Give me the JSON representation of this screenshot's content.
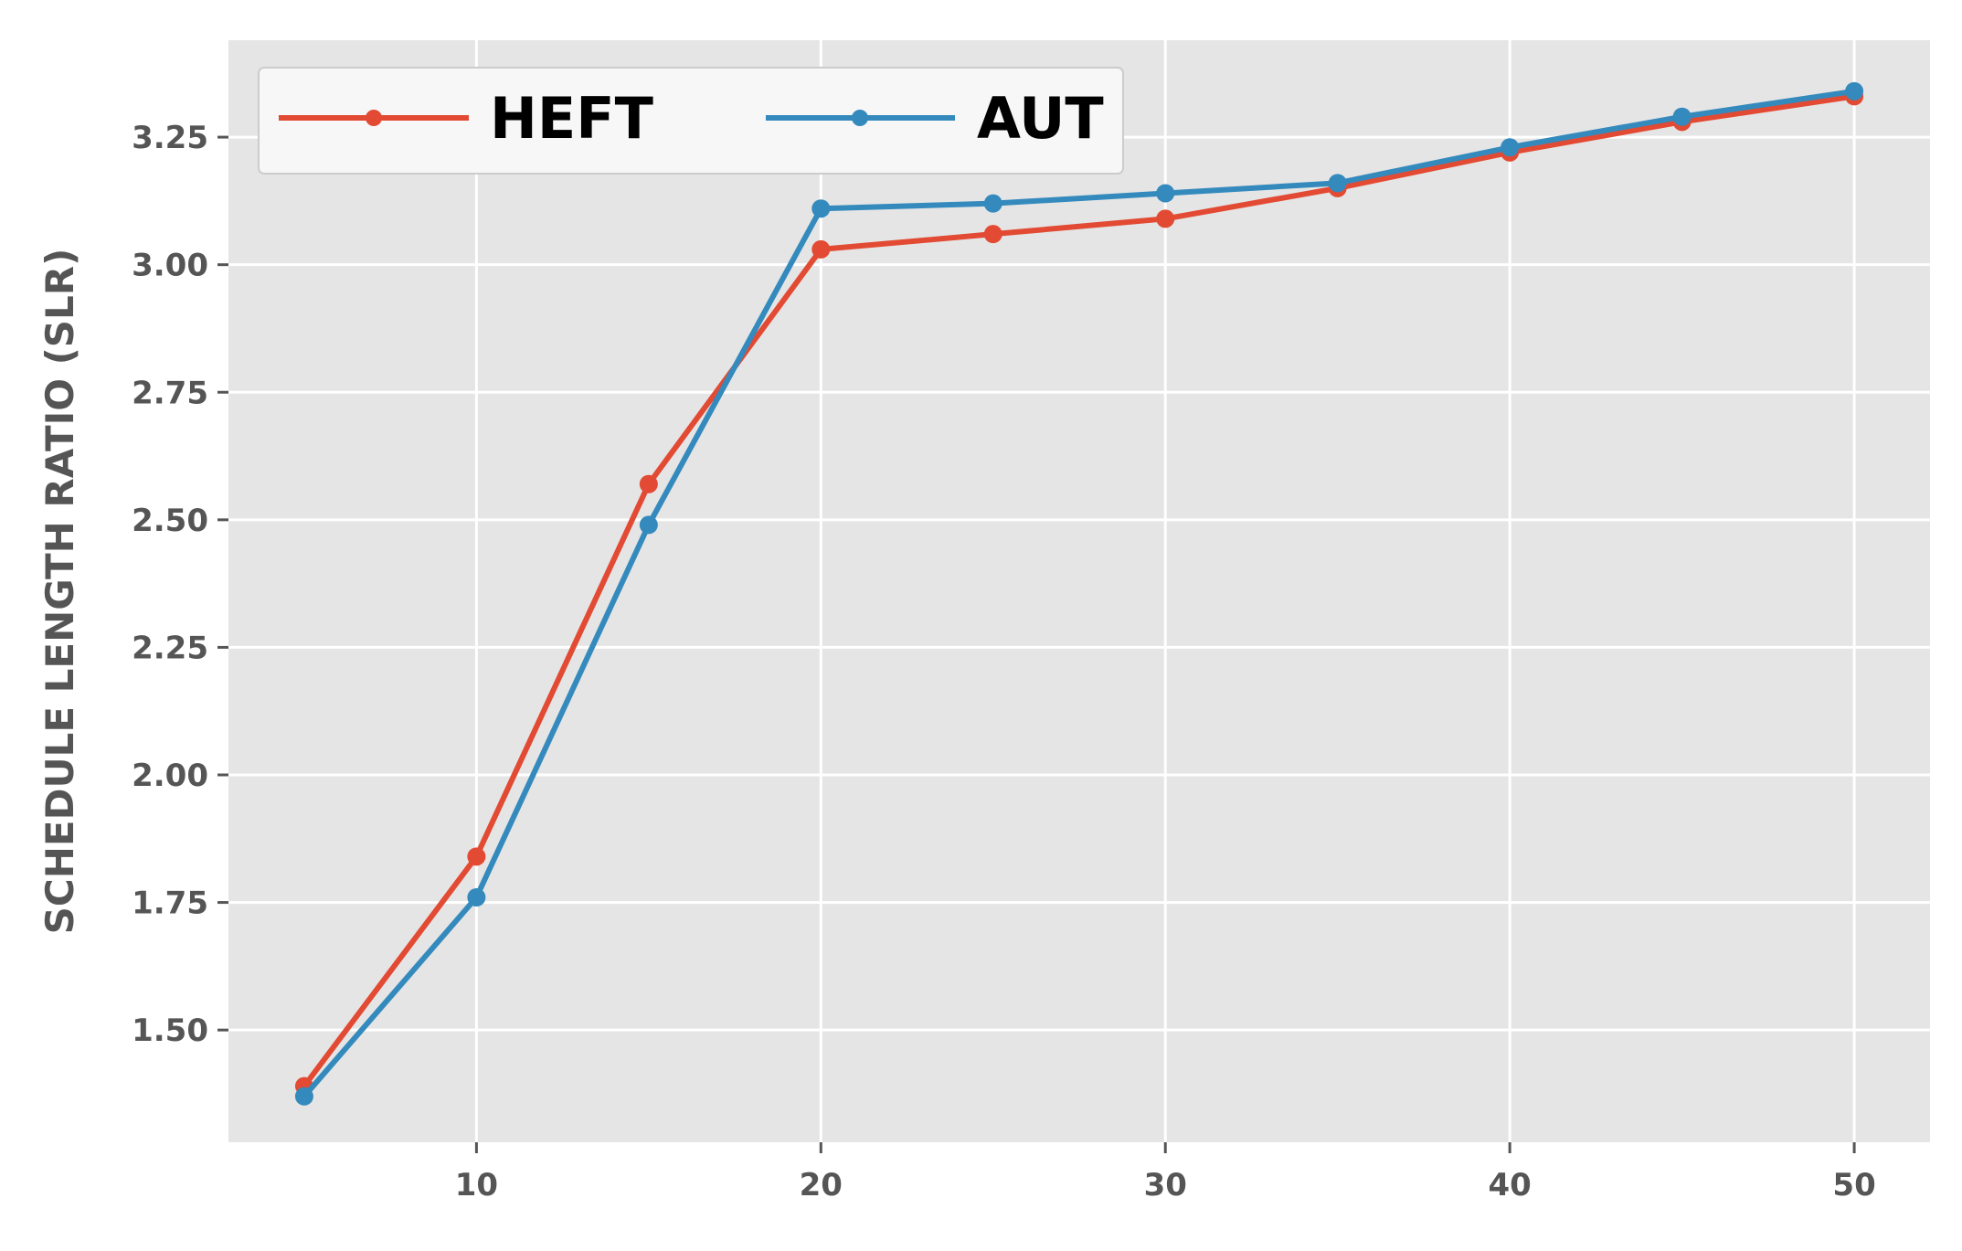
{
  "chart_data": {
    "type": "line",
    "title": "",
    "xlabel": "",
    "ylabel": "SCHEDULE LENGTH RATIO (SLR)",
    "xlim": [
      2.8,
      52.2
    ],
    "ylim": [
      1.28,
      3.44
    ],
    "x_ticks": [
      10,
      20,
      30,
      40,
      50
    ],
    "y_ticks": [
      1.5,
      1.75,
      2.0,
      2.25,
      2.5,
      2.75,
      3.0,
      3.25
    ],
    "grid": true,
    "legend_position": "top-left",
    "x": [
      5,
      10,
      15,
      20,
      25,
      30,
      35,
      40,
      45,
      50
    ],
    "series": [
      {
        "name": "HEFT",
        "color": "#E24A33",
        "values": [
          1.39,
          1.84,
          2.57,
          3.03,
          3.06,
          3.09,
          3.15,
          3.22,
          3.28,
          3.33
        ]
      },
      {
        "name": "AUT",
        "color": "#348ABD",
        "values": [
          1.37,
          1.76,
          2.49,
          3.11,
          3.12,
          3.14,
          3.16,
          3.23,
          3.29,
          3.34
        ]
      }
    ]
  }
}
